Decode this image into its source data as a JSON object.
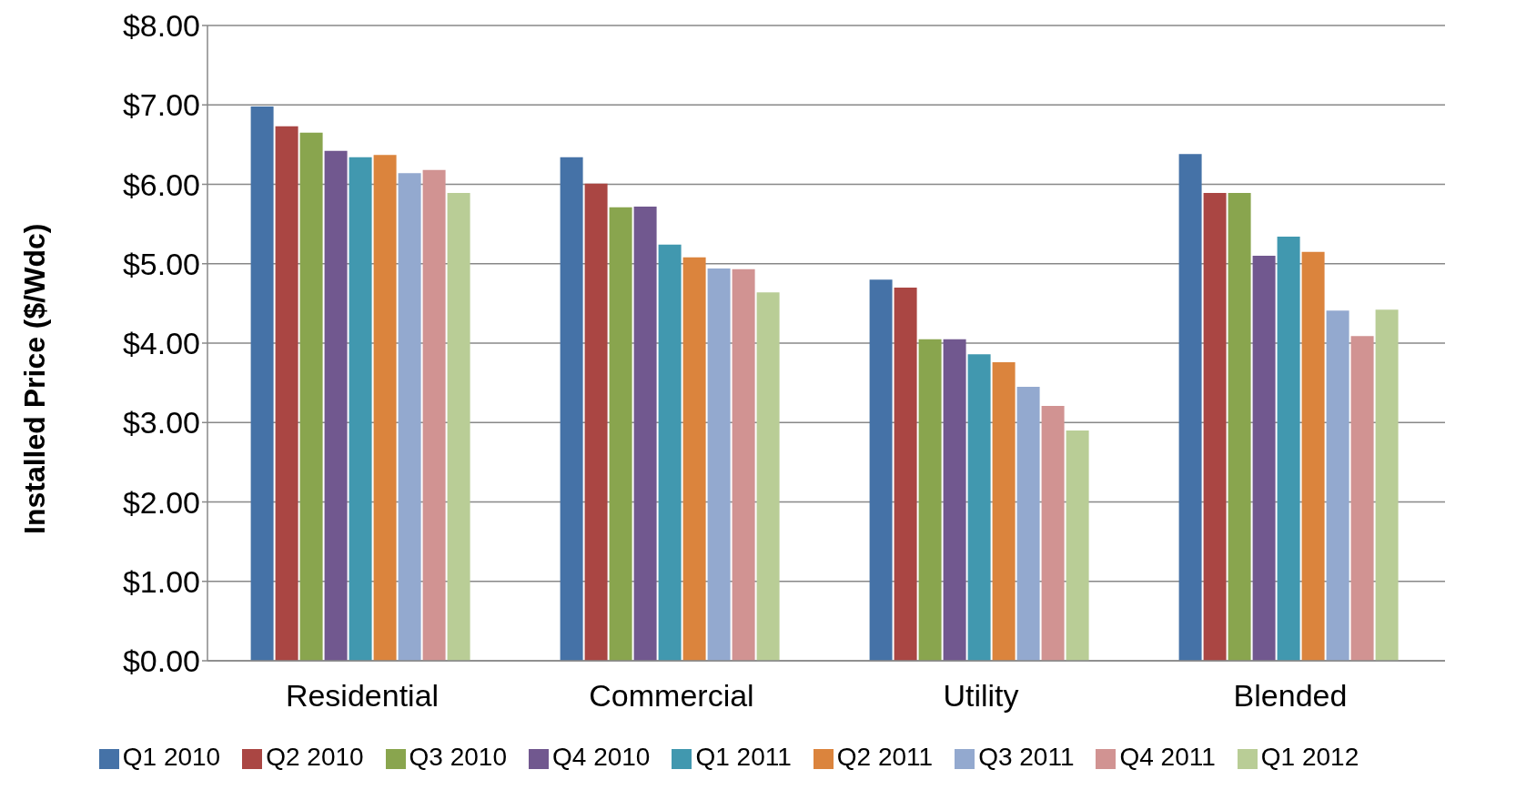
{
  "chart_data": {
    "type": "bar",
    "ylabel": "Installed Price ($/Wdc)",
    "categories": [
      "Residential",
      "Commercial",
      "Utility",
      "Blended"
    ],
    "series": [
      {
        "name": "Q1 2010",
        "color": "#4572a7",
        "values": [
          6.98,
          6.34,
          4.8,
          6.38
        ]
      },
      {
        "name": "Q2 2010",
        "color": "#aa4643",
        "values": [
          6.73,
          6.01,
          4.7,
          5.89
        ]
      },
      {
        "name": "Q3 2010",
        "color": "#89a54e",
        "values": [
          6.65,
          5.71,
          4.05,
          5.89
        ]
      },
      {
        "name": "Q4 2010",
        "color": "#71588f",
        "values": [
          6.42,
          5.72,
          4.05,
          5.1
        ]
      },
      {
        "name": "Q1 2011",
        "color": "#4198af",
        "values": [
          6.34,
          5.24,
          3.86,
          5.34
        ]
      },
      {
        "name": "Q2 2011",
        "color": "#db843d",
        "values": [
          6.37,
          5.08,
          3.76,
          5.15
        ]
      },
      {
        "name": "Q3 2011",
        "color": "#93a9cf",
        "values": [
          6.14,
          4.94,
          3.45,
          4.41
        ]
      },
      {
        "name": "Q4 2011",
        "color": "#d19392",
        "values": [
          6.18,
          4.93,
          3.21,
          4.09
        ]
      },
      {
        "name": "Q1 2012",
        "color": "#b9cd96",
        "values": [
          5.89,
          4.64,
          2.9,
          4.42
        ]
      }
    ],
    "ylim": [
      0,
      8
    ],
    "yticks": [
      {
        "value": 0,
        "label": "$0.00"
      },
      {
        "value": 1,
        "label": "$1.00"
      },
      {
        "value": 2,
        "label": "$2.00"
      },
      {
        "value": 3,
        "label": "$3.00"
      },
      {
        "value": 4,
        "label": "$4.00"
      },
      {
        "value": 5,
        "label": "$5.00"
      },
      {
        "value": 6,
        "label": "$6.00"
      },
      {
        "value": 7,
        "label": "$7.00"
      },
      {
        "value": 8,
        "label": "$8.00"
      }
    ],
    "grid": "y",
    "legend": "bottom"
  }
}
